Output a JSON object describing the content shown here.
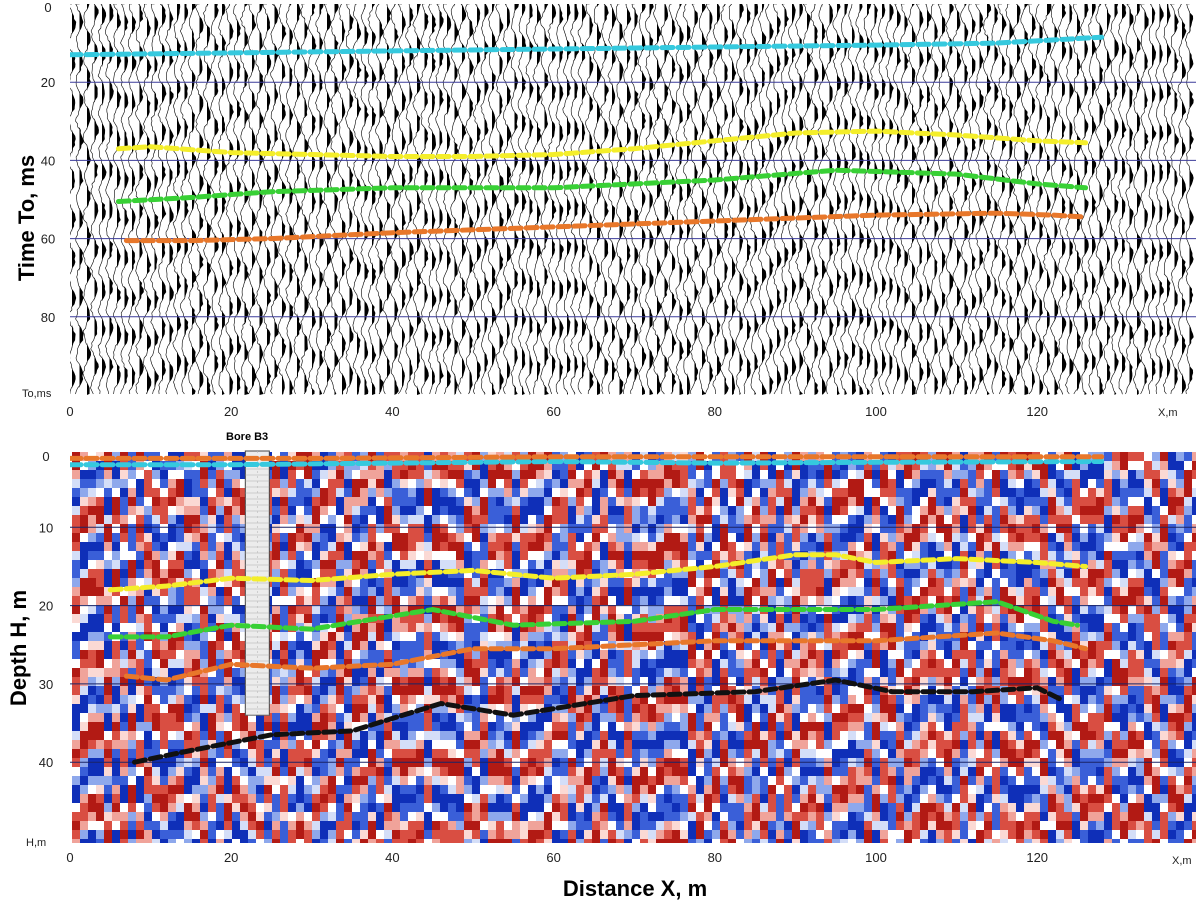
{
  "chart_data": [
    {
      "type": "line",
      "panel": "seismic time section",
      "ylabel": "Time To, ms",
      "y_axis_caption": "To,ms",
      "x_axis_caption": "X,m",
      "xlim": [
        0,
        140
      ],
      "ylim": [
        0,
        100
      ],
      "y_inverted": true,
      "x_ticks": [
        0,
        20,
        40,
        60,
        80,
        100,
        120
      ],
      "y_ticks": [
        0,
        20,
        40,
        60,
        80
      ],
      "grid": "horizontal",
      "series": [
        {
          "color": "#35c9de",
          "x": [
            0,
            20,
            40,
            60,
            80,
            100,
            115,
            128
          ],
          "y": [
            13,
            12.5,
            12,
            11.5,
            11,
            10.5,
            10,
            8.5
          ]
        },
        {
          "color": "#f4ee2a",
          "x": [
            6,
            10,
            20,
            30,
            40,
            50,
            60,
            70,
            80,
            90,
            100,
            110,
            120,
            126
          ],
          "y": [
            37,
            36.5,
            38,
            38.5,
            39,
            39,
            38.5,
            37,
            35,
            33,
            32.5,
            33.5,
            35,
            35.5
          ]
        },
        {
          "color": "#38d035",
          "x": [
            6,
            15,
            25,
            40,
            60,
            80,
            95,
            110,
            120,
            126
          ],
          "y": [
            50.5,
            49.5,
            48,
            47,
            47,
            45,
            42.5,
            43.5,
            46,
            47
          ]
        },
        {
          "color": "#e8772a",
          "x": [
            7,
            15,
            25,
            40,
            60,
            80,
            100,
            115,
            122,
            126
          ],
          "y": [
            60.5,
            60.5,
            60,
            58.5,
            57,
            55.5,
            54,
            53.5,
            54,
            54.5
          ]
        }
      ]
    },
    {
      "type": "line",
      "panel": "depth section",
      "xlabel": "Distance X, m",
      "ylabel": "Depth  H, m",
      "y_axis_caption": "H,m",
      "x_axis_caption": "X,m",
      "annotation": "Bore B3",
      "bore_x": 22,
      "bore_depth": [
        0,
        34
      ],
      "xlim": [
        0,
        140
      ],
      "ylim": [
        0,
        50
      ],
      "y_inverted": true,
      "x_ticks": [
        0,
        20,
        40,
        60,
        80,
        100,
        120
      ],
      "y_ticks": [
        0,
        10,
        20,
        30,
        40
      ],
      "grid": "horizontal",
      "series": [
        {
          "color": "#35c9de",
          "x": [
            0,
            20,
            40,
            60,
            80,
            100,
            128
          ],
          "y": [
            2,
            2,
            1.8,
            1.6,
            1.8,
            1.7,
            1.6
          ]
        },
        {
          "color": "#e8772a",
          "x": [
            0,
            30,
            60,
            90,
            128
          ],
          "y": [
            1.2,
            1.2,
            1.0,
            1.0,
            1.0
          ]
        },
        {
          "color": "#f4ee2a",
          "x": [
            5,
            12,
            20,
            30,
            40,
            50,
            60,
            70,
            80,
            90,
            95,
            100,
            110,
            120,
            126
          ],
          "y": [
            18,
            17.5,
            16.5,
            16.8,
            16,
            15.5,
            16.5,
            16,
            15,
            13.5,
            13.5,
            14.5,
            14,
            14.5,
            15
          ]
        },
        {
          "color": "#38d035",
          "x": [
            5,
            12,
            20,
            30,
            45,
            55,
            70,
            80,
            90,
            100,
            115,
            122,
            125
          ],
          "y": [
            24,
            24,
            22.5,
            23,
            20.5,
            22.5,
            22,
            20.5,
            20.5,
            20.5,
            19.5,
            22,
            22.5
          ]
        },
        {
          "color": "#e8772a",
          "x": [
            7,
            12,
            20,
            30,
            40,
            50,
            60,
            70,
            80,
            90,
            100,
            115,
            122,
            126
          ],
          "y": [
            29,
            29.5,
            27.5,
            28,
            27.5,
            25.5,
            25.5,
            25,
            24.5,
            24.5,
            24.5,
            23.5,
            24.5,
            25.5
          ]
        },
        {
          "color": "#111111",
          "x": [
            8,
            15,
            25,
            35,
            46,
            55,
            70,
            85,
            95,
            102,
            112,
            120,
            123
          ],
          "y": [
            40,
            38.5,
            36.5,
            36,
            32.5,
            34,
            31.5,
            31,
            29.5,
            31,
            31,
            30.5,
            32
          ]
        }
      ]
    }
  ]
}
